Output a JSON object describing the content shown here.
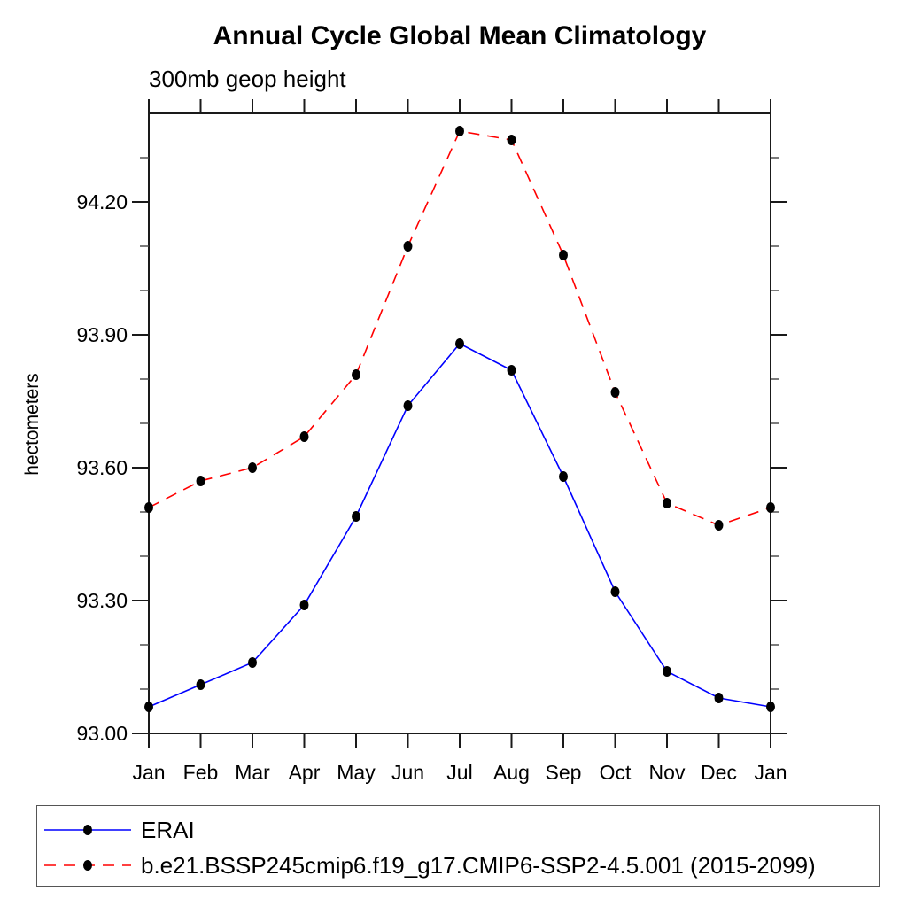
{
  "title": "Annual Cycle Global Mean Climatology",
  "subtitle": "300mb geop height",
  "ylabel": "hectometers",
  "colors": {
    "erai_line": "#0000ff",
    "model_line": "#ff0000",
    "marker": "#000000",
    "axis": "#1a1a1a",
    "minor_tick": "#444444",
    "text": "#000000"
  },
  "chart_data": {
    "type": "line",
    "categories": [
      "Jan",
      "Feb",
      "Mar",
      "Apr",
      "May",
      "Jun",
      "Jul",
      "Aug",
      "Sep",
      "Oct",
      "Nov",
      "Dec",
      "Jan"
    ],
    "series": [
      {
        "name": "ERAI",
        "color": "#0000ff",
        "style": "solid",
        "marker": "filled-circle",
        "values": [
          93.06,
          93.11,
          93.16,
          93.29,
          93.49,
          93.74,
          93.88,
          93.82,
          93.58,
          93.32,
          93.14,
          93.08,
          93.06
        ]
      },
      {
        "name": "b.e21.BSSP245cmip6.f19_g17.CMIP6-SSP2-4.5.001 (2015-2099)",
        "color": "#ff0000",
        "style": "dashed",
        "marker": "filled-circle",
        "values": [
          93.51,
          93.57,
          93.6,
          93.67,
          93.81,
          94.1,
          94.36,
          94.34,
          94.08,
          93.77,
          93.52,
          93.47,
          93.51
        ]
      }
    ],
    "title": "Annual Cycle Global Mean Climatology",
    "subtitle": "300mb geop height",
    "xlabel": "",
    "ylabel": "hectometers",
    "ylim": [
      93.0,
      94.4
    ],
    "ytick_major": [
      93.0,
      93.3,
      93.6,
      93.9,
      94.2
    ],
    "ytick_major_labels": [
      "93.00",
      "93.30",
      "93.60",
      "93.90",
      "94.20"
    ],
    "ytick_minor_step": 0.1,
    "grid": false,
    "frame": "box",
    "legend_position": "bottom-left"
  },
  "legend": {
    "entries": [
      {
        "label": "ERAI"
      },
      {
        "label": "b.e21.BSSP245cmip6.f19_g17.CMIP6-SSP2-4.5.001 (2015-2099)"
      }
    ]
  }
}
